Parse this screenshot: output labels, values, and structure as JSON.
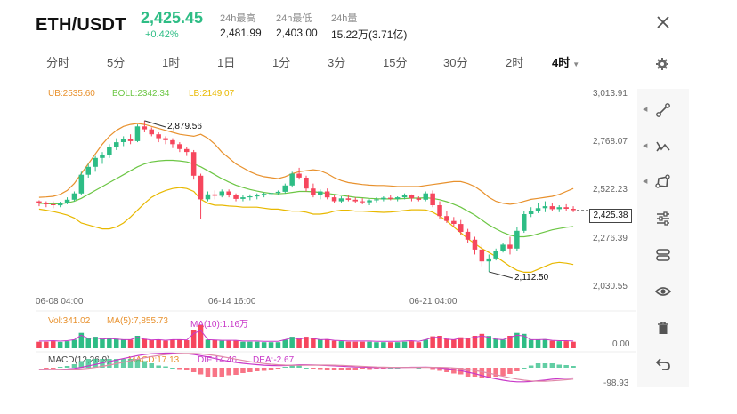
{
  "header": {
    "pair": "ETH/USDT",
    "price": "2,425.45",
    "change": "+0.42%",
    "stats": [
      {
        "label": "24h最高",
        "value": "2,481.99"
      },
      {
        "label": "24h最低",
        "value": "2,403.00"
      },
      {
        "label": "24h量",
        "value": "15.22万(3.71亿)"
      }
    ]
  },
  "tabs": [
    "分时",
    "5分",
    "1时",
    "1日",
    "1分",
    "3分",
    "15分",
    "30分",
    "2时",
    "4时"
  ],
  "active_tab": "4时",
  "boll_legend": {
    "ub": "UB:2535.60",
    "boll": "BOLL:2342.34",
    "lb": "LB:2149.07"
  },
  "vol_legend": {
    "vol": "Vol:341.02",
    "ma5": "MA(5):7,855.73",
    "ma10": "MA(10):1.16万"
  },
  "macd_legend": {
    "macd_params": "MACD(12,26,9)",
    "macd": "MACD:17.13",
    "dif": "DIF:14.46",
    "dea": "DEA:-2.67"
  },
  "price_axis": [
    "3,013.91",
    "2,768.07",
    "2,522.23",
    "2,276.39",
    "2,030.55"
  ],
  "last_price_label": "2,425.38",
  "high_annotation": "2,879.56",
  "low_annotation": "2,112.50",
  "time_axis": [
    "06-08 04:00",
    "06-14 16:00",
    "06-21 04:00"
  ],
  "vol_axis": "0.00",
  "macd_axis": "-98.93",
  "colors": {
    "up": "#2ebd85",
    "down": "#f6465d",
    "ub": "#e8912d",
    "mid": "#6cc644",
    "lb": "#e8b800",
    "dif": "#c837c8",
    "dea": "#e08aa8"
  },
  "side_icons": [
    "settings-icon",
    "trend-line-icon",
    "multi-line-icon",
    "shape-icon",
    "adjust-icon",
    "connect-icon",
    "eye-icon",
    "trash-icon",
    "undo-icon"
  ],
  "chart_data": {
    "type": "candlestick",
    "candles": [
      [
        2470,
        2475,
        2445,
        2462
      ],
      [
        2462,
        2470,
        2440,
        2455
      ],
      [
        2455,
        2470,
        2435,
        2450
      ],
      [
        2450,
        2468,
        2440,
        2462
      ],
      [
        2462,
        2490,
        2455,
        2478
      ],
      [
        2478,
        2520,
        2470,
        2510
      ],
      [
        2510,
        2620,
        2500,
        2605
      ],
      [
        2605,
        2660,
        2590,
        2645
      ],
      [
        2645,
        2700,
        2620,
        2690
      ],
      [
        2690,
        2720,
        2660,
        2705
      ],
      [
        2705,
        2760,
        2690,
        2745
      ],
      [
        2745,
        2790,
        2730,
        2770
      ],
      [
        2770,
        2800,
        2750,
        2785
      ],
      [
        2785,
        2810,
        2760,
        2775
      ],
      [
        2775,
        2860,
        2770,
        2850
      ],
      [
        2850,
        2879,
        2820,
        2835
      ],
      [
        2835,
        2845,
        2800,
        2810
      ],
      [
        2810,
        2820,
        2770,
        2790
      ],
      [
        2790,
        2800,
        2760,
        2780
      ],
      [
        2780,
        2790,
        2740,
        2760
      ],
      [
        2760,
        2770,
        2720,
        2735
      ],
      [
        2735,
        2745,
        2700,
        2720
      ],
      [
        2720,
        2730,
        2580,
        2600
      ],
      [
        2600,
        2610,
        2380,
        2480
      ],
      [
        2480,
        2520,
        2470,
        2505
      ],
      [
        2505,
        2525,
        2480,
        2498
      ],
      [
        2498,
        2530,
        2490,
        2520
      ],
      [
        2520,
        2530,
        2490,
        2500
      ],
      [
        2500,
        2510,
        2470,
        2482
      ],
      [
        2482,
        2500,
        2470,
        2490
      ],
      [
        2490,
        2505,
        2475,
        2495
      ],
      [
        2495,
        2510,
        2480,
        2502
      ],
      [
        2502,
        2515,
        2490,
        2508
      ],
      [
        2508,
        2520,
        2495,
        2512
      ],
      [
        2512,
        2525,
        2500,
        2518
      ],
      [
        2518,
        2560,
        2510,
        2550
      ],
      [
        2550,
        2620,
        2540,
        2610
      ],
      [
        2610,
        2640,
        2580,
        2590
      ],
      [
        2590,
        2600,
        2520,
        2535
      ],
      [
        2535,
        2560,
        2490,
        2500
      ],
      [
        2500,
        2530,
        2480,
        2520
      ],
      [
        2520,
        2535,
        2480,
        2490
      ],
      [
        2490,
        2500,
        2460,
        2470
      ],
      [
        2470,
        2495,
        2460,
        2485
      ],
      [
        2485,
        2500,
        2470,
        2478
      ],
      [
        2478,
        2490,
        2460,
        2470
      ],
      [
        2470,
        2485,
        2455,
        2465
      ],
      [
        2465,
        2480,
        2450,
        2475
      ],
      [
        2475,
        2490,
        2465,
        2480
      ],
      [
        2480,
        2495,
        2470,
        2488
      ],
      [
        2488,
        2500,
        2475,
        2482
      ],
      [
        2482,
        2495,
        2470,
        2490
      ],
      [
        2490,
        2510,
        2480,
        2500
      ],
      [
        2500,
        2505,
        2470,
        2485
      ],
      [
        2485,
        2495,
        2470,
        2478
      ],
      [
        2478,
        2520,
        2470,
        2510
      ],
      [
        2510,
        2525,
        2440,
        2450
      ],
      [
        2450,
        2470,
        2380,
        2395
      ],
      [
        2395,
        2420,
        2360,
        2370
      ],
      [
        2370,
        2390,
        2340,
        2355
      ],
      [
        2355,
        2375,
        2300,
        2315
      ],
      [
        2315,
        2330,
        2260,
        2275
      ],
      [
        2275,
        2290,
        2200,
        2225
      ],
      [
        2225,
        2250,
        2140,
        2165
      ],
      [
        2165,
        2200,
        2112,
        2180
      ],
      [
        2180,
        2230,
        2170,
        2220
      ],
      [
        2220,
        2260,
        2210,
        2250
      ],
      [
        2250,
        2290,
        2200,
        2230
      ],
      [
        2230,
        2340,
        2220,
        2320
      ],
      [
        2320,
        2420,
        2310,
        2405
      ],
      [
        2405,
        2440,
        2390,
        2420
      ],
      [
        2420,
        2460,
        2410,
        2435
      ],
      [
        2435,
        2470,
        2415,
        2445
      ],
      [
        2445,
        2460,
        2420,
        2430
      ],
      [
        2430,
        2450,
        2415,
        2440
      ],
      [
        2440,
        2455,
        2420,
        2432
      ],
      [
        2432,
        2445,
        2415,
        2425
      ]
    ],
    "ub": [
      2490,
      2492,
      2495,
      2505,
      2525,
      2560,
      2610,
      2660,
      2710,
      2760,
      2800,
      2830,
      2850,
      2860,
      2865,
      2860,
      2850,
      2840,
      2830,
      2820,
      2810,
      2805,
      2800,
      2810,
      2790,
      2760,
      2720,
      2690,
      2660,
      2640,
      2620,
      2605,
      2595,
      2590,
      2585,
      2595,
      2610,
      2620,
      2625,
      2630,
      2625,
      2610,
      2590,
      2575,
      2565,
      2560,
      2555,
      2552,
      2550,
      2550,
      2548,
      2545,
      2545,
      2545,
      2545,
      2550,
      2555,
      2560,
      2565,
      2570,
      2570,
      2560,
      2545,
      2520,
      2490,
      2470,
      2460,
      2455,
      2460,
      2470,
      2480,
      2485,
      2490,
      2495,
      2505,
      2520,
      2535
    ],
    "mid": [
      2460,
      2458,
      2456,
      2458,
      2462,
      2470,
      2485,
      2505,
      2525,
      2545,
      2565,
      2585,
      2605,
      2625,
      2645,
      2660,
      2670,
      2675,
      2678,
      2678,
      2675,
      2670,
      2660,
      2645,
      2625,
      2605,
      2585,
      2568,
      2552,
      2540,
      2530,
      2522,
      2515,
      2510,
      2508,
      2510,
      2515,
      2520,
      2520,
      2518,
      2515,
      2510,
      2505,
      2500,
      2495,
      2490,
      2488,
      2485,
      2483,
      2482,
      2482,
      2482,
      2484,
      2486,
      2486,
      2488,
      2485,
      2478,
      2468,
      2455,
      2440,
      2420,
      2400,
      2375,
      2350,
      2330,
      2312,
      2298,
      2290,
      2290,
      2295,
      2305,
      2315,
      2325,
      2332,
      2338,
      2342
    ],
    "lb": [
      2430,
      2425,
      2418,
      2410,
      2400,
      2385,
      2360,
      2350,
      2340,
      2330,
      2330,
      2340,
      2360,
      2390,
      2425,
      2460,
      2490,
      2510,
      2525,
      2535,
      2540,
      2535,
      2520,
      2480,
      2460,
      2450,
      2450,
      2446,
      2444,
      2440,
      2440,
      2440,
      2435,
      2430,
      2430,
      2425,
      2420,
      2420,
      2415,
      2405,
      2405,
      2410,
      2420,
      2425,
      2425,
      2420,
      2420,
      2418,
      2416,
      2414,
      2416,
      2419,
      2423,
      2427,
      2427,
      2426,
      2415,
      2395,
      2370,
      2340,
      2310,
      2280,
      2255,
      2230,
      2210,
      2190,
      2165,
      2140,
      2120,
      2110,
      2110,
      2125,
      2140,
      2155,
      2160,
      2156,
      2149
    ],
    "ylim": [
      2030.55,
      3013.91
    ]
  }
}
